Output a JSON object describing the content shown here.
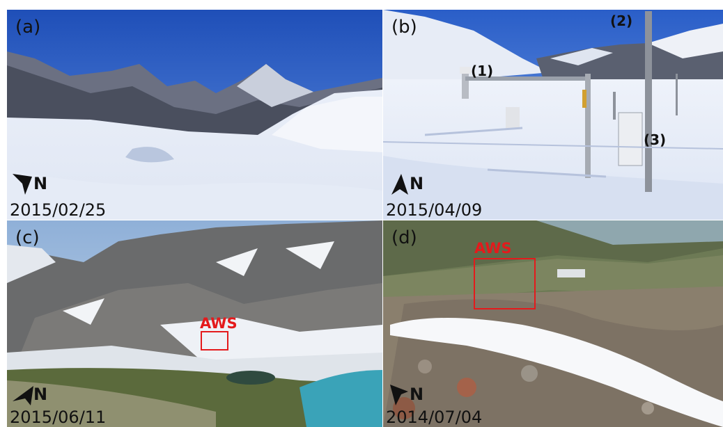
{
  "panels": [
    {
      "id": "a",
      "label": "(a)",
      "date": "2015/02/25",
      "north": "N"
    },
    {
      "id": "b",
      "label": "(b)",
      "date": "2015/04/09",
      "north": "N",
      "callouts": [
        "(1)",
        "(2)",
        "(3)"
      ]
    },
    {
      "id": "c",
      "label": "(c)",
      "date": "2015/06/11",
      "north": "N",
      "marker": "AWS"
    },
    {
      "id": "d",
      "label": "(d)",
      "date": "2014/07/04",
      "north": "N",
      "marker": "AWS"
    }
  ],
  "colors": {
    "aws_marker": "#e41a1c",
    "text": "#111111"
  },
  "icons": {
    "north_arrow": "north-arrow-icon"
  }
}
